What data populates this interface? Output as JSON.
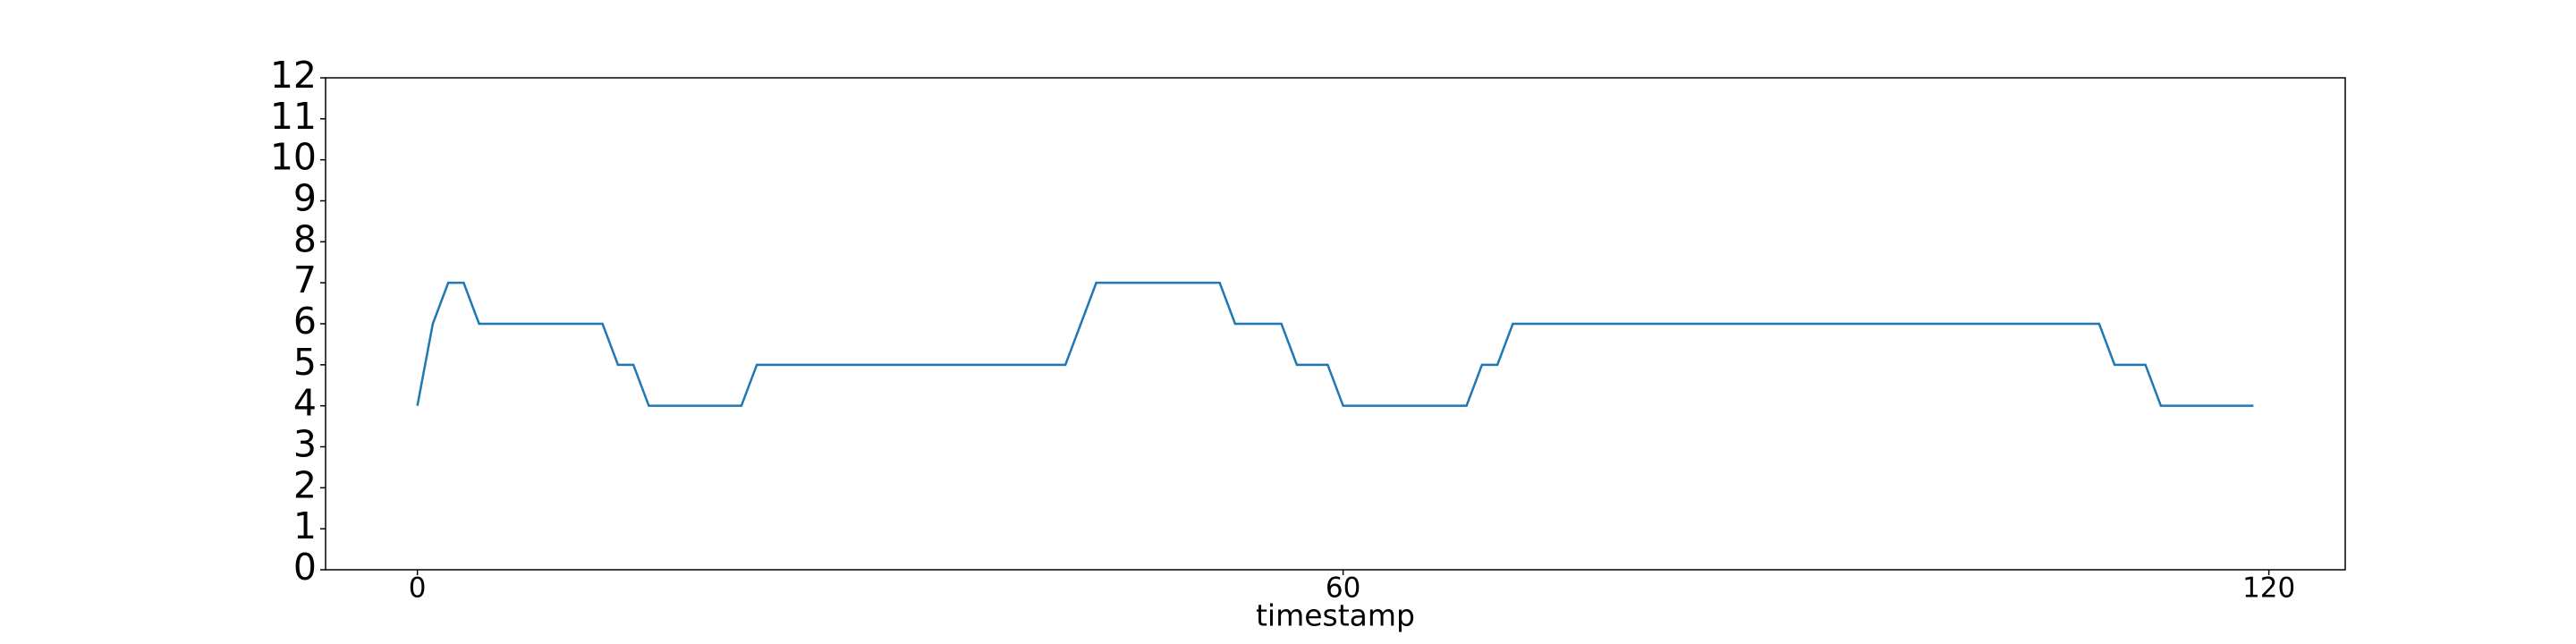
{
  "chart_data": {
    "type": "line",
    "xlabel": "timestamp",
    "x": [
      0,
      1,
      2,
      3,
      4,
      5,
      6,
      7,
      8,
      9,
      10,
      11,
      12,
      13,
      14,
      15,
      16,
      17,
      18,
      19,
      20,
      21,
      22,
      23,
      24,
      25,
      26,
      27,
      28,
      29,
      30,
      31,
      32,
      33,
      34,
      35,
      36,
      37,
      38,
      39,
      40,
      41,
      42,
      43,
      44,
      45,
      46,
      47,
      48,
      49,
      50,
      51,
      52,
      53,
      54,
      55,
      56,
      57,
      58,
      59,
      60,
      61,
      62,
      63,
      64,
      65,
      66,
      67,
      68,
      69,
      70,
      71,
      72,
      73,
      74,
      75,
      76,
      77,
      78,
      79,
      80,
      81,
      82,
      83,
      84,
      85,
      86,
      87,
      88,
      89,
      90,
      91,
      92,
      93,
      94,
      95,
      96,
      97,
      98,
      99,
      100,
      101,
      102,
      103,
      104,
      105,
      106,
      107,
      108,
      109,
      110,
      111,
      112,
      113,
      114,
      115,
      116,
      117,
      118,
      119
    ],
    "series": [
      {
        "color": "#1f77b4",
        "values": [
          4,
          6,
          7,
          7,
          6,
          6,
          6,
          6,
          6,
          6,
          6,
          6,
          6,
          5,
          5,
          4,
          4,
          4,
          4,
          4,
          4,
          4,
          5,
          5,
          5,
          5,
          5,
          5,
          5,
          5,
          5,
          5,
          5,
          5,
          5,
          5,
          5,
          5,
          5,
          5,
          5,
          5,
          5,
          6,
          7,
          7,
          7,
          7,
          7,
          7,
          7,
          7,
          7,
          6,
          6,
          6,
          6,
          5,
          5,
          5,
          4,
          4,
          4,
          4,
          4,
          4,
          4,
          4,
          4,
          5,
          5,
          6,
          6,
          6,
          6,
          6,
          6,
          6,
          6,
          6,
          6,
          6,
          6,
          6,
          6,
          6,
          6,
          6,
          6,
          6,
          6,
          6,
          6,
          6,
          6,
          6,
          6,
          6,
          6,
          6,
          6,
          6,
          6,
          6,
          6,
          6,
          6,
          6,
          6,
          6,
          5,
          5,
          5,
          4,
          4,
          4,
          4,
          4,
          4,
          4
        ]
      }
    ],
    "xlim": [
      -5.95,
      124.95
    ],
    "xticks": [
      0,
      60,
      120
    ],
    "ylim": [
      0,
      12
    ],
    "yticks": [
      0,
      1,
      2,
      3,
      4,
      5,
      6,
      7,
      8,
      9,
      10,
      11,
      12
    ]
  }
}
